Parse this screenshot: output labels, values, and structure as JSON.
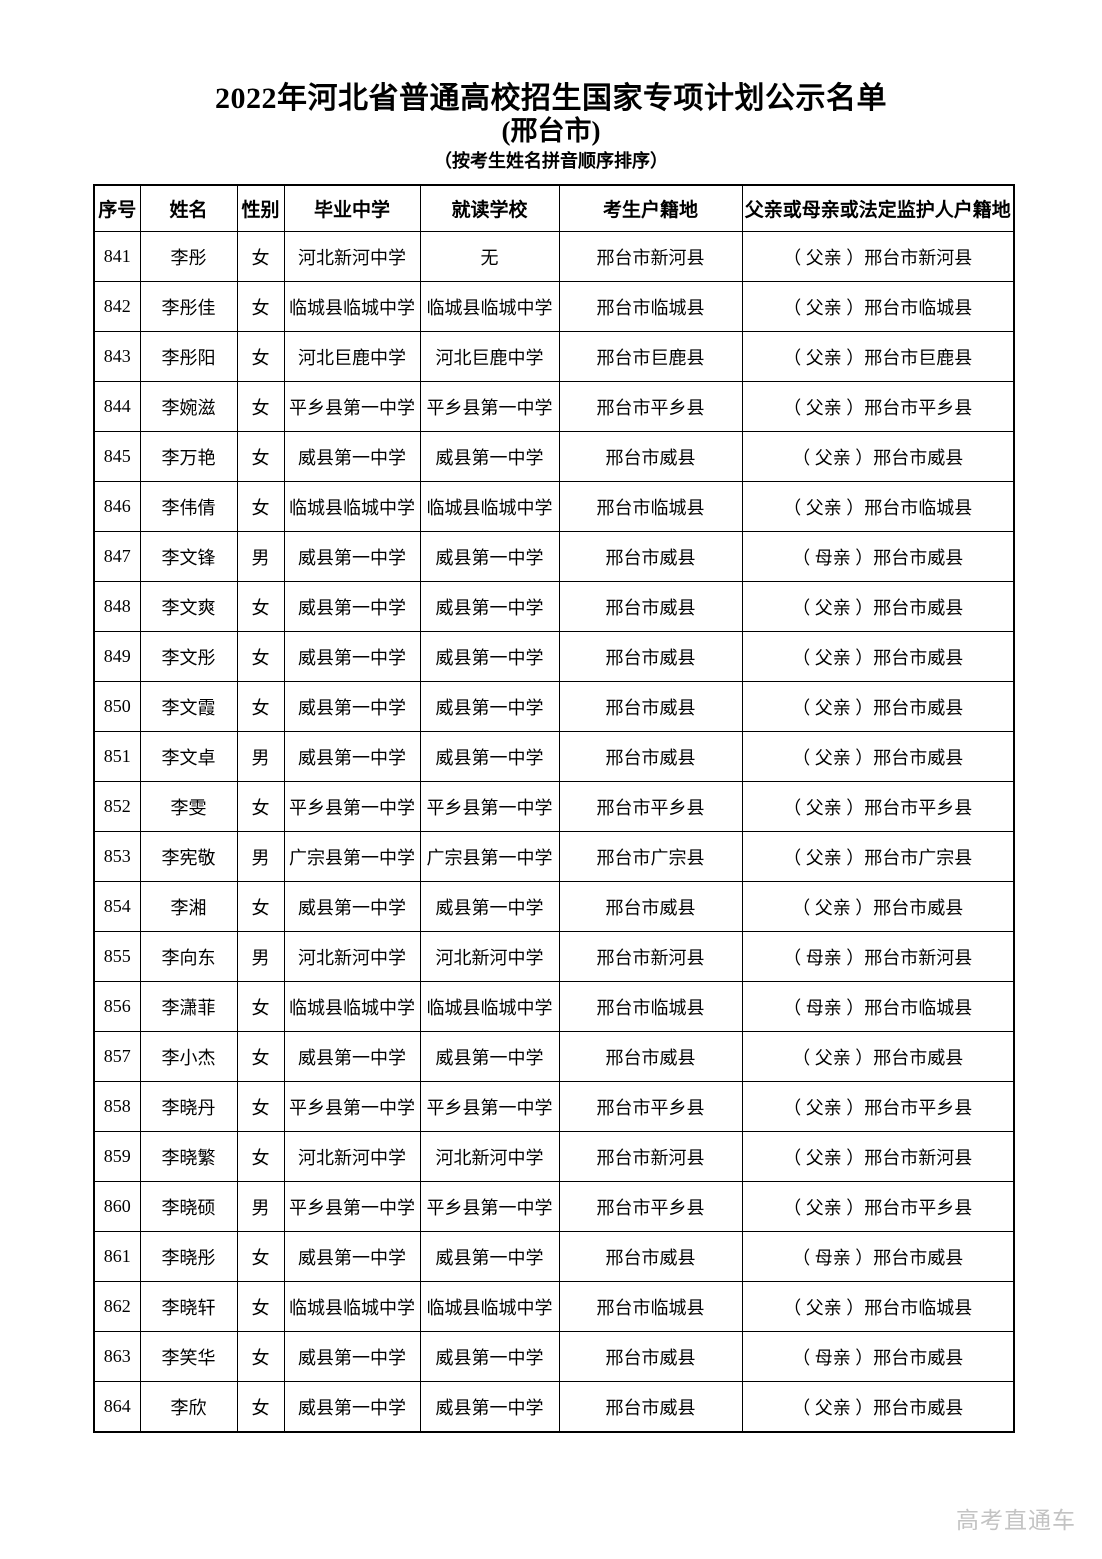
{
  "page": {
    "title": "2022年河北省普通高校招生国家专项计划公示名单",
    "subtitle": "(邢台市)",
    "sort_note": "（按考生姓名拼音顺序排序）",
    "watermark": "高考直通车"
  },
  "table": {
    "headers": [
      "序号",
      "姓名",
      "性别",
      "毕业中学",
      "就读学校",
      "考生户籍地",
      "父亲或母亲或法定监护人户籍地"
    ],
    "rows": [
      [
        "841",
        "李彤",
        "女",
        "河北新河中学",
        "无",
        "邢台市新河县",
        "（ 父亲 ）邢台市新河县"
      ],
      [
        "842",
        "李彤佳",
        "女",
        "临城县临城中学",
        "临城县临城中学",
        "邢台市临城县",
        "（ 父亲 ）邢台市临城县"
      ],
      [
        "843",
        "李彤阳",
        "女",
        "河北巨鹿中学",
        "河北巨鹿中学",
        "邢台市巨鹿县",
        "（ 父亲 ）邢台市巨鹿县"
      ],
      [
        "844",
        "李婉滋",
        "女",
        "平乡县第一中学",
        "平乡县第一中学",
        "邢台市平乡县",
        "（ 父亲 ）邢台市平乡县"
      ],
      [
        "845",
        "李万艳",
        "女",
        "威县第一中学",
        "威县第一中学",
        "邢台市威县",
        "（ 父亲 ）邢台市威县"
      ],
      [
        "846",
        "李伟倩",
        "女",
        "临城县临城中学",
        "临城县临城中学",
        "邢台市临城县",
        "（ 父亲 ）邢台市临城县"
      ],
      [
        "847",
        "李文锋",
        "男",
        "威县第一中学",
        "威县第一中学",
        "邢台市威县",
        "（ 母亲 ）邢台市威县"
      ],
      [
        "848",
        "李文爽",
        "女",
        "威县第一中学",
        "威县第一中学",
        "邢台市威县",
        "（ 父亲 ）邢台市威县"
      ],
      [
        "849",
        "李文彤",
        "女",
        "威县第一中学",
        "威县第一中学",
        "邢台市威县",
        "（ 父亲 ）邢台市威县"
      ],
      [
        "850",
        "李文霞",
        "女",
        "威县第一中学",
        "威县第一中学",
        "邢台市威县",
        "（ 父亲 ）邢台市威县"
      ],
      [
        "851",
        "李文卓",
        "男",
        "威县第一中学",
        "威县第一中学",
        "邢台市威县",
        "（ 父亲 ）邢台市威县"
      ],
      [
        "852",
        "李雯",
        "女",
        "平乡县第一中学",
        "平乡县第一中学",
        "邢台市平乡县",
        "（ 父亲 ）邢台市平乡县"
      ],
      [
        "853",
        "李宪敬",
        "男",
        "广宗县第一中学",
        "广宗县第一中学",
        "邢台市广宗县",
        "（ 父亲 ）邢台市广宗县"
      ],
      [
        "854",
        "李湘",
        "女",
        "威县第一中学",
        "威县第一中学",
        "邢台市威县",
        "（ 父亲 ）邢台市威县"
      ],
      [
        "855",
        "李向东",
        "男",
        "河北新河中学",
        "河北新河中学",
        "邢台市新河县",
        "（ 母亲 ）邢台市新河县"
      ],
      [
        "856",
        "李潇菲",
        "女",
        "临城县临城中学",
        "临城县临城中学",
        "邢台市临城县",
        "（ 母亲 ）邢台市临城县"
      ],
      [
        "857",
        "李小杰",
        "女",
        "威县第一中学",
        "威县第一中学",
        "邢台市威县",
        "（ 父亲 ）邢台市威县"
      ],
      [
        "858",
        "李晓丹",
        "女",
        "平乡县第一中学",
        "平乡县第一中学",
        "邢台市平乡县",
        "（ 父亲 ）邢台市平乡县"
      ],
      [
        "859",
        "李晓繁",
        "女",
        "河北新河中学",
        "河北新河中学",
        "邢台市新河县",
        "（ 父亲 ）邢台市新河县"
      ],
      [
        "860",
        "李晓硕",
        "男",
        "平乡县第一中学",
        "平乡县第一中学",
        "邢台市平乡县",
        "（ 父亲 ）邢台市平乡县"
      ],
      [
        "861",
        "李晓彤",
        "女",
        "威县第一中学",
        "威县第一中学",
        "邢台市威县",
        "（ 母亲 ）邢台市威县"
      ],
      [
        "862",
        "李晓轩",
        "女",
        "临城县临城中学",
        "临城县临城中学",
        "邢台市临城县",
        "（ 父亲 ）邢台市临城县"
      ],
      [
        "863",
        "李笑华",
        "女",
        "威县第一中学",
        "威县第一中学",
        "邢台市威县",
        "（ 母亲 ）邢台市威县"
      ],
      [
        "864",
        "李欣",
        "女",
        "威县第一中学",
        "威县第一中学",
        "邢台市威县",
        "（ 父亲 ）邢台市威县"
      ]
    ]
  }
}
